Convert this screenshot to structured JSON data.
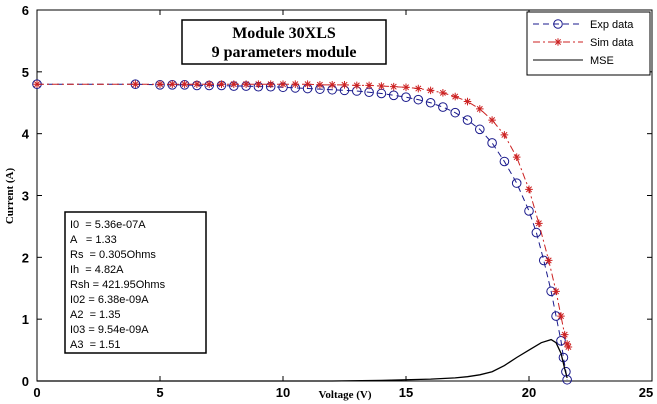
{
  "chart_data": {
    "type": "line",
    "title": "Module 30XLS",
    "subtitle": "9 parameters module",
    "xlabel": "Voltage (V)",
    "ylabel": "Current (A)",
    "xlim": [
      0,
      25
    ],
    "ylim": [
      0,
      6
    ],
    "xticks": [
      "0",
      "5",
      "10",
      "15",
      "20",
      "25"
    ],
    "yticks": [
      "0",
      "1",
      "2",
      "3",
      "4",
      "5",
      "6"
    ],
    "grid": false,
    "legend_position": "top-right",
    "series": [
      {
        "name": "Exp data",
        "style": "dashed-circle",
        "color": "#1a1a8c",
        "x": [
          0,
          4,
          5,
          5.5,
          6,
          6.5,
          7,
          7.5,
          8,
          8.5,
          9,
          9.5,
          10,
          10.5,
          11,
          11.5,
          12,
          12.5,
          13,
          13.5,
          14,
          14.5,
          15,
          15.5,
          16,
          16.5,
          17,
          17.5,
          18,
          18.5,
          19,
          19.5,
          20,
          20.3,
          20.6,
          20.9,
          21.1,
          21.3,
          21.4,
          21.5,
          21.55
        ],
        "y": [
          4.8,
          4.8,
          4.79,
          4.79,
          4.79,
          4.78,
          4.78,
          4.78,
          4.77,
          4.77,
          4.76,
          4.76,
          4.75,
          4.74,
          4.73,
          4.72,
          4.71,
          4.7,
          4.69,
          4.67,
          4.65,
          4.62,
          4.59,
          4.55,
          4.5,
          4.43,
          4.34,
          4.22,
          4.07,
          3.85,
          3.55,
          3.2,
          2.75,
          2.4,
          1.95,
          1.45,
          1.05,
          0.65,
          0.38,
          0.15,
          0.02
        ]
      },
      {
        "name": "Sim data",
        "style": "dashdot-star",
        "color": "#cc2222",
        "x": [
          0,
          4,
          5,
          5.5,
          6,
          6.5,
          7,
          7.5,
          8,
          8.5,
          9,
          9.5,
          10,
          10.5,
          11,
          11.5,
          12,
          12.5,
          13,
          13.5,
          14,
          14.5,
          15,
          15.5,
          16,
          16.5,
          17,
          17.5,
          18,
          18.5,
          19,
          19.5,
          20,
          20.4,
          20.8,
          21.1,
          21.3,
          21.45,
          21.55,
          21.6
        ],
        "y": [
          4.8,
          4.8,
          4.8,
          4.8,
          4.8,
          4.8,
          4.8,
          4.8,
          4.8,
          4.8,
          4.8,
          4.8,
          4.8,
          4.8,
          4.8,
          4.79,
          4.79,
          4.79,
          4.78,
          4.78,
          4.77,
          4.76,
          4.75,
          4.73,
          4.7,
          4.66,
          4.6,
          4.52,
          4.4,
          4.22,
          3.98,
          3.62,
          3.1,
          2.55,
          1.95,
          1.45,
          1.05,
          0.75,
          0.6,
          0.55
        ]
      },
      {
        "name": "MSE",
        "style": "solid",
        "color": "#000000",
        "x": [
          0,
          5,
          10,
          12,
          14,
          15,
          16,
          17,
          17.5,
          18,
          18.5,
          19,
          19.5,
          20,
          20.5,
          20.9,
          21.1,
          21.3,
          21.45,
          21.55
        ],
        "y": [
          0,
          0,
          0,
          0,
          0.01,
          0.02,
          0.03,
          0.05,
          0.07,
          0.1,
          0.15,
          0.25,
          0.38,
          0.5,
          0.62,
          0.67,
          0.62,
          0.45,
          0.2,
          0.05
        ]
      }
    ],
    "parameters": [
      "I0  = 5.36e-07A",
      "A   = 1.33",
      "Rs  = 0.305Ohms",
      "Ih  = 4.82A",
      "Rsh = 421.95Ohms",
      "I02 = 6.38e-09A",
      "A2  = 1.35",
      "I03 = 9.54e-09A",
      "A3  = 1.51"
    ]
  }
}
